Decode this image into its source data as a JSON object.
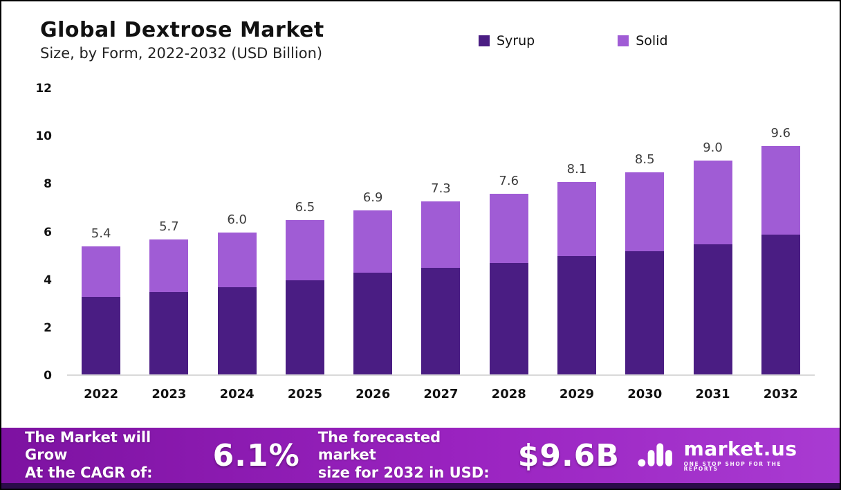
{
  "header": {
    "title": "Global  Dextrose Market",
    "subtitle": "Size, by Form, 2022-2032 (USD Billion)"
  },
  "colors": {
    "syrup": "#4a1d83",
    "solid": "#a05cd5",
    "banner_gradient_start": "#7d12a1",
    "banner_gradient_end": "#a93bd2"
  },
  "chart_data": {
    "type": "bar",
    "stacked": true,
    "title": "Global Dextrose Market Size, by Form, 2022-2032 (USD Billion)",
    "categories": [
      "2022",
      "2023",
      "2024",
      "2025",
      "2026",
      "2027",
      "2028",
      "2029",
      "2030",
      "2031",
      "2032"
    ],
    "series": [
      {
        "name": "Syrup",
        "color": "#4a1d83",
        "values": [
          3.3,
          3.5,
          3.7,
          4.0,
          4.3,
          4.5,
          4.7,
          5.0,
          5.2,
          5.5,
          5.9
        ]
      },
      {
        "name": "Solid",
        "color": "#a05cd5",
        "values": [
          2.1,
          2.2,
          2.3,
          2.5,
          2.6,
          2.8,
          2.9,
          3.1,
          3.3,
          3.5,
          3.7
        ]
      }
    ],
    "totals": [
      5.4,
      5.7,
      6.0,
      6.5,
      6.9,
      7.3,
      7.6,
      8.1,
      8.5,
      9.0,
      9.6
    ],
    "total_labels": [
      "5.4",
      "5.7",
      "6.0",
      "6.5",
      "6.9",
      "7.3",
      "7.6",
      "8.1",
      "8.5",
      "9.0",
      "9.6"
    ],
    "xlabel": "",
    "ylabel": "",
    "ylim": [
      0,
      12
    ],
    "yticks": [
      0,
      2,
      4,
      6,
      8,
      10,
      12
    ],
    "legend": [
      "Syrup",
      "Solid"
    ],
    "legend_position": "top",
    "grid": false
  },
  "footer": {
    "cagr_label_line1": "The Market will Grow",
    "cagr_label_line2": "At the CAGR of:",
    "cagr_value": "6.1%",
    "forecast_label_line1": "The forecasted market",
    "forecast_label_line2": "size for 2032 in USD:",
    "forecast_value": "$9.6B",
    "logo_name": "market.us",
    "logo_tagline": "ONE STOP SHOP FOR THE REPORTS"
  }
}
